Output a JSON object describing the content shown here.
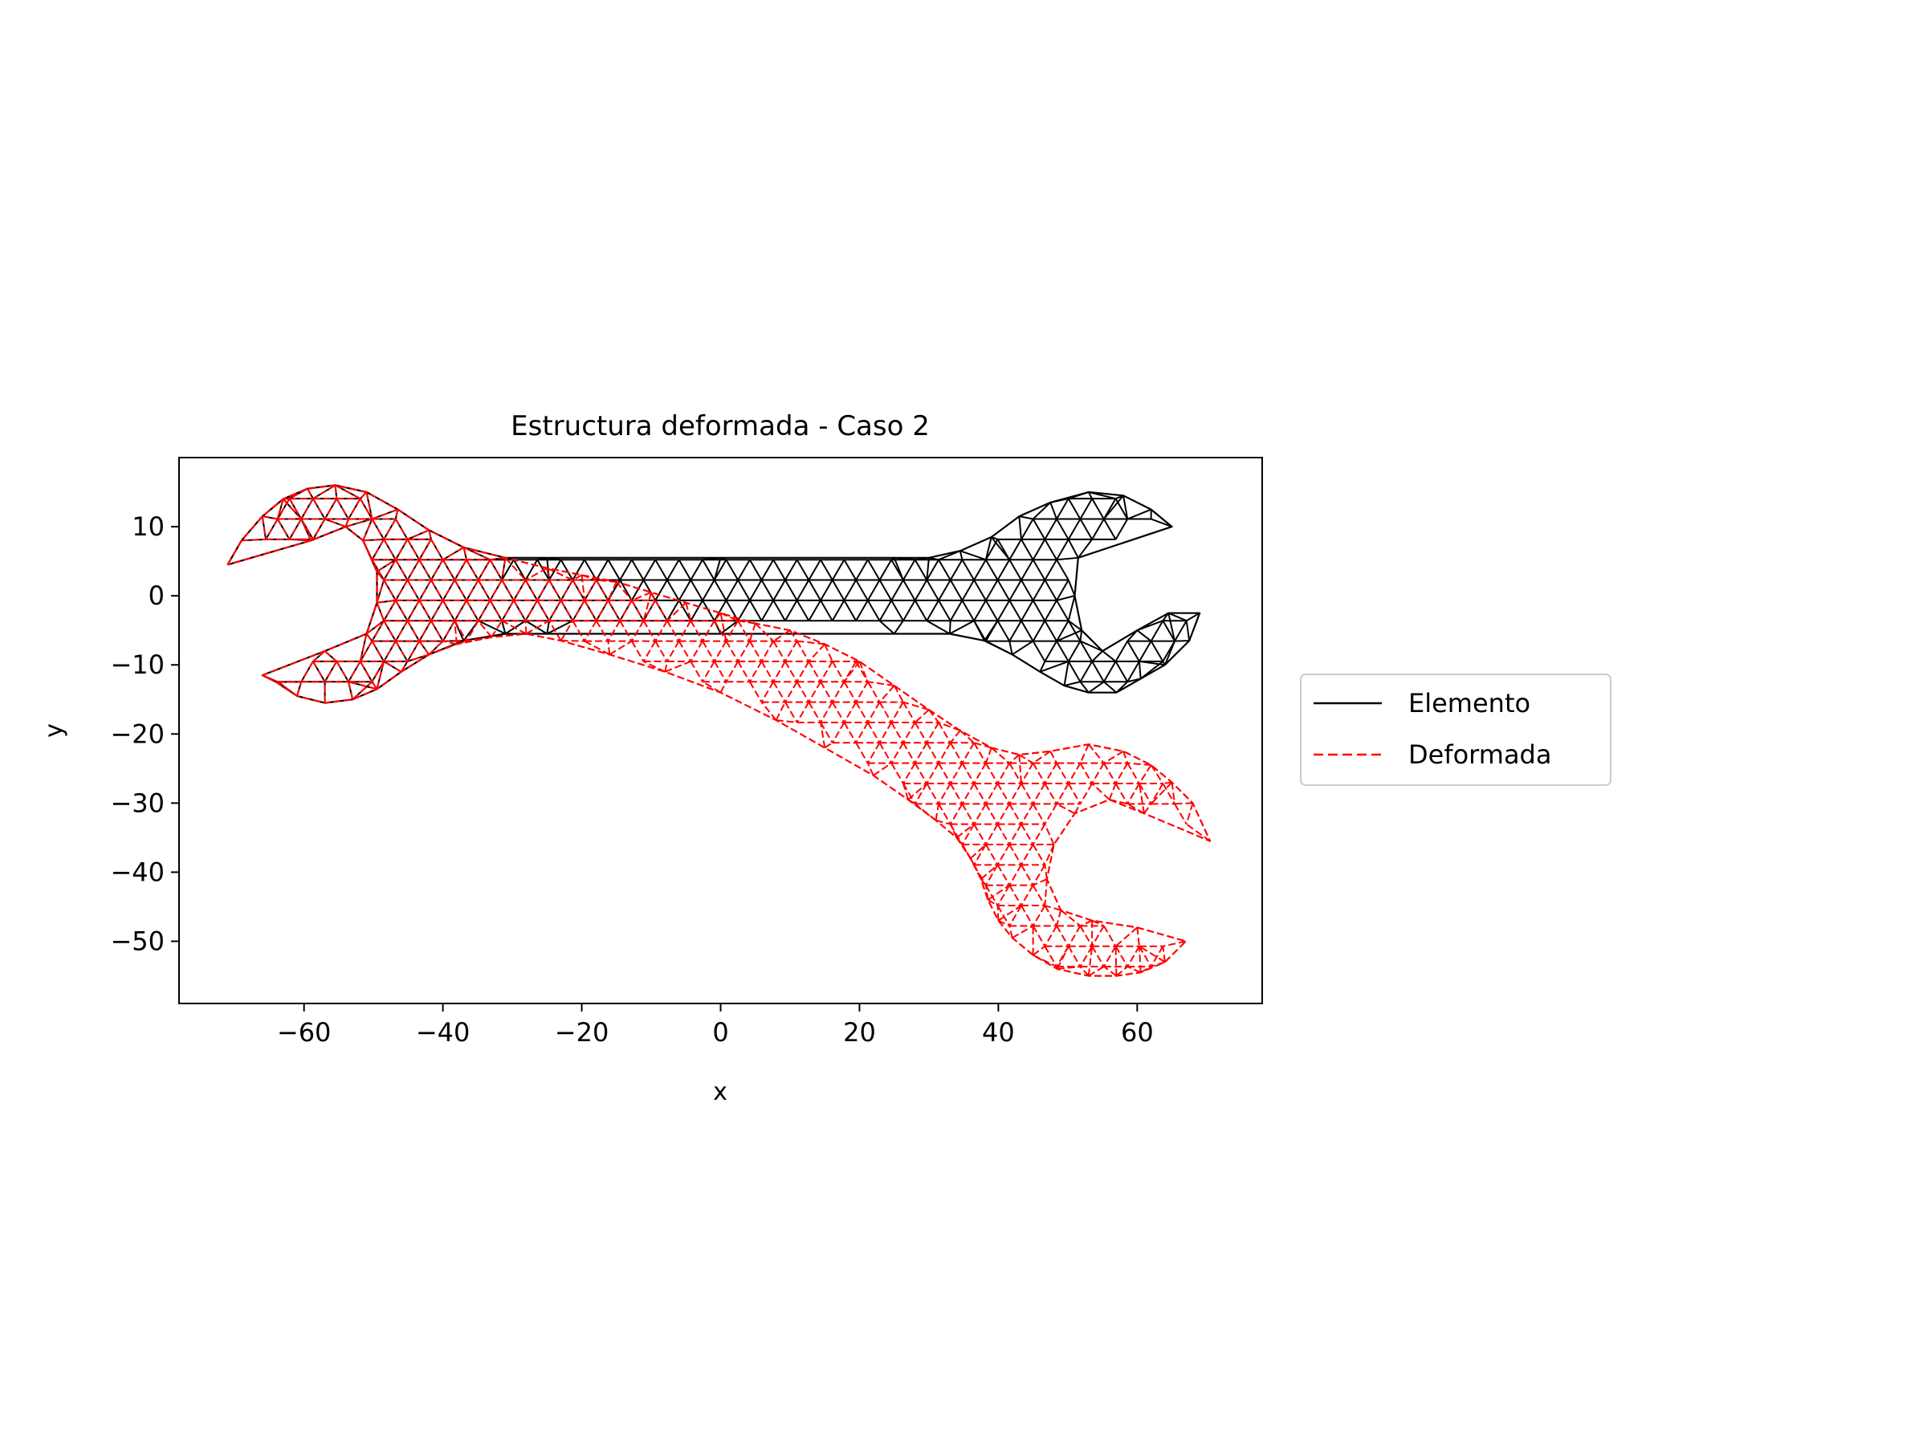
{
  "chart_data": {
    "type": "line",
    "title": "Estructura deformada - Caso 2",
    "xlabel": "x",
    "ylabel": "y",
    "xlim": [
      -78,
      78
    ],
    "ylim": [
      -59,
      20
    ],
    "xticks": [
      -60,
      -40,
      -20,
      0,
      20,
      40,
      60
    ],
    "yticks": [
      10,
      0,
      -10,
      -20,
      -30,
      -40,
      -50
    ],
    "xtick_labels": [
      "−60",
      "−40",
      "−20",
      "0",
      "20",
      "40",
      "60"
    ],
    "ytick_labels": [
      "10",
      "0",
      "−10",
      "−20",
      "−30",
      "−40",
      "−50"
    ],
    "grid": false,
    "legend_position": "outside-right",
    "colors": {
      "elemento": "#000000",
      "deformada": "#ff0000"
    },
    "series": [
      {
        "name": "Elemento",
        "style": "solid",
        "outline": [
          [
            -71,
            4.5
          ],
          [
            -69,
            8
          ],
          [
            -66,
            11.5
          ],
          [
            -63,
            14
          ],
          [
            -59.5,
            15.5
          ],
          [
            -55.5,
            16
          ],
          [
            -51,
            15
          ],
          [
            -46.5,
            12.5
          ],
          [
            -42,
            9.5
          ],
          [
            -37,
            7
          ],
          [
            -31,
            5.5
          ],
          [
            -25,
            5.5
          ],
          [
            0,
            5.5
          ],
          [
            25,
            5.5
          ],
          [
            30,
            5.5
          ],
          [
            34.5,
            6.5
          ],
          [
            39,
            8.5
          ],
          [
            43,
            11.5
          ],
          [
            47.5,
            13.5
          ],
          [
            53,
            15
          ],
          [
            58,
            14.5
          ],
          [
            62,
            12.5
          ],
          [
            65,
            10
          ],
          [
            51.5,
            5.5
          ],
          [
            51,
            0
          ],
          [
            52,
            -5
          ],
          [
            55,
            -8
          ],
          [
            60,
            -5
          ],
          [
            64.5,
            -2.5
          ],
          [
            69,
            -2.5
          ],
          [
            67.5,
            -6.5
          ],
          [
            64,
            -10
          ],
          [
            60.5,
            -12
          ],
          [
            57,
            -14
          ],
          [
            53,
            -14
          ],
          [
            49.5,
            -13
          ],
          [
            46,
            -11
          ],
          [
            42,
            -8.5
          ],
          [
            38,
            -6.5
          ],
          [
            33,
            -5.5
          ],
          [
            25,
            -5.5
          ],
          [
            0,
            -5.5
          ],
          [
            -25,
            -5.5
          ],
          [
            -31,
            -5.5
          ],
          [
            -37,
            -6.5
          ],
          [
            -42,
            -8.5
          ],
          [
            -46,
            -11
          ],
          [
            -49.5,
            -13.5
          ],
          [
            -53,
            -15
          ],
          [
            -57,
            -15.5
          ],
          [
            -61,
            -14.5
          ],
          [
            -64,
            -12.5
          ],
          [
            -66,
            -11.5
          ],
          [
            -57,
            -8
          ],
          [
            -51,
            -5.5
          ],
          [
            -49.5,
            -1
          ],
          [
            -49.5,
            3.5
          ],
          [
            -51.5,
            8
          ],
          [
            -54,
            10
          ],
          [
            -59,
            8
          ],
          [
            -71,
            4.5
          ]
        ]
      },
      {
        "name": "Deformada",
        "style": "dashed",
        "outline": [
          [
            -71,
            4.5
          ],
          [
            -69,
            8
          ],
          [
            -66,
            11.5
          ],
          [
            -63,
            14
          ],
          [
            -59.5,
            15.5
          ],
          [
            -55.5,
            16
          ],
          [
            -51,
            15
          ],
          [
            -46.5,
            12.5
          ],
          [
            -42,
            9.5
          ],
          [
            -37,
            7
          ],
          [
            -31,
            5.5
          ],
          [
            -25,
            4
          ],
          [
            -20,
            3
          ],
          [
            -15,
            2
          ],
          [
            -10,
            0.5
          ],
          [
            -5,
            -1
          ],
          [
            0,
            -2.5
          ],
          [
            5,
            -4
          ],
          [
            10,
            -5
          ],
          [
            15,
            -7
          ],
          [
            20,
            -9.5
          ],
          [
            25,
            -13
          ],
          [
            30,
            -16.5
          ],
          [
            34.5,
            -19.5
          ],
          [
            39,
            -22
          ],
          [
            43,
            -23
          ],
          [
            47.5,
            -22.5
          ],
          [
            53,
            -21.5
          ],
          [
            58,
            -22.5
          ],
          [
            62,
            -24.5
          ],
          [
            65,
            -27
          ],
          [
            68,
            -30
          ],
          [
            70.5,
            -35.5
          ],
          [
            61,
            -31.5
          ],
          [
            56,
            -29.5
          ],
          [
            51,
            -31.5
          ],
          [
            48,
            -36
          ],
          [
            47,
            -41
          ],
          [
            49,
            -45.5
          ],
          [
            53.5,
            -47
          ],
          [
            60,
            -48
          ],
          [
            67,
            -50
          ],
          [
            64,
            -53
          ],
          [
            60.5,
            -54.5
          ],
          [
            57,
            -55
          ],
          [
            53,
            -55
          ],
          [
            48.5,
            -54
          ],
          [
            45,
            -52
          ],
          [
            42,
            -49.5
          ],
          [
            40,
            -47
          ],
          [
            38.5,
            -44
          ],
          [
            37.5,
            -41
          ],
          [
            36,
            -38
          ],
          [
            34,
            -35
          ],
          [
            31,
            -32.5
          ],
          [
            27,
            -29.5
          ],
          [
            22,
            -26
          ],
          [
            15,
            -22
          ],
          [
            8,
            -18
          ],
          [
            0,
            -14
          ],
          [
            -8,
            -11
          ],
          [
            -16,
            -8.5
          ],
          [
            -23,
            -6.5
          ],
          [
            -28,
            -5.5
          ],
          [
            -33,
            -6
          ],
          [
            -38,
            -7
          ],
          [
            -42,
            -8.5
          ],
          [
            -46,
            -11
          ],
          [
            -49.5,
            -13.5
          ],
          [
            -53,
            -15
          ],
          [
            -57,
            -15.5
          ],
          [
            -61,
            -14.5
          ],
          [
            -64,
            -12.5
          ],
          [
            -66,
            -11.5
          ],
          [
            -57,
            -8
          ],
          [
            -51,
            -5.5
          ],
          [
            -49.5,
            -1
          ],
          [
            -49.5,
            3.5
          ],
          [
            -51.5,
            8
          ],
          [
            -54,
            10
          ],
          [
            -59,
            8
          ],
          [
            -71,
            4.5
          ]
        ]
      }
    ]
  }
}
